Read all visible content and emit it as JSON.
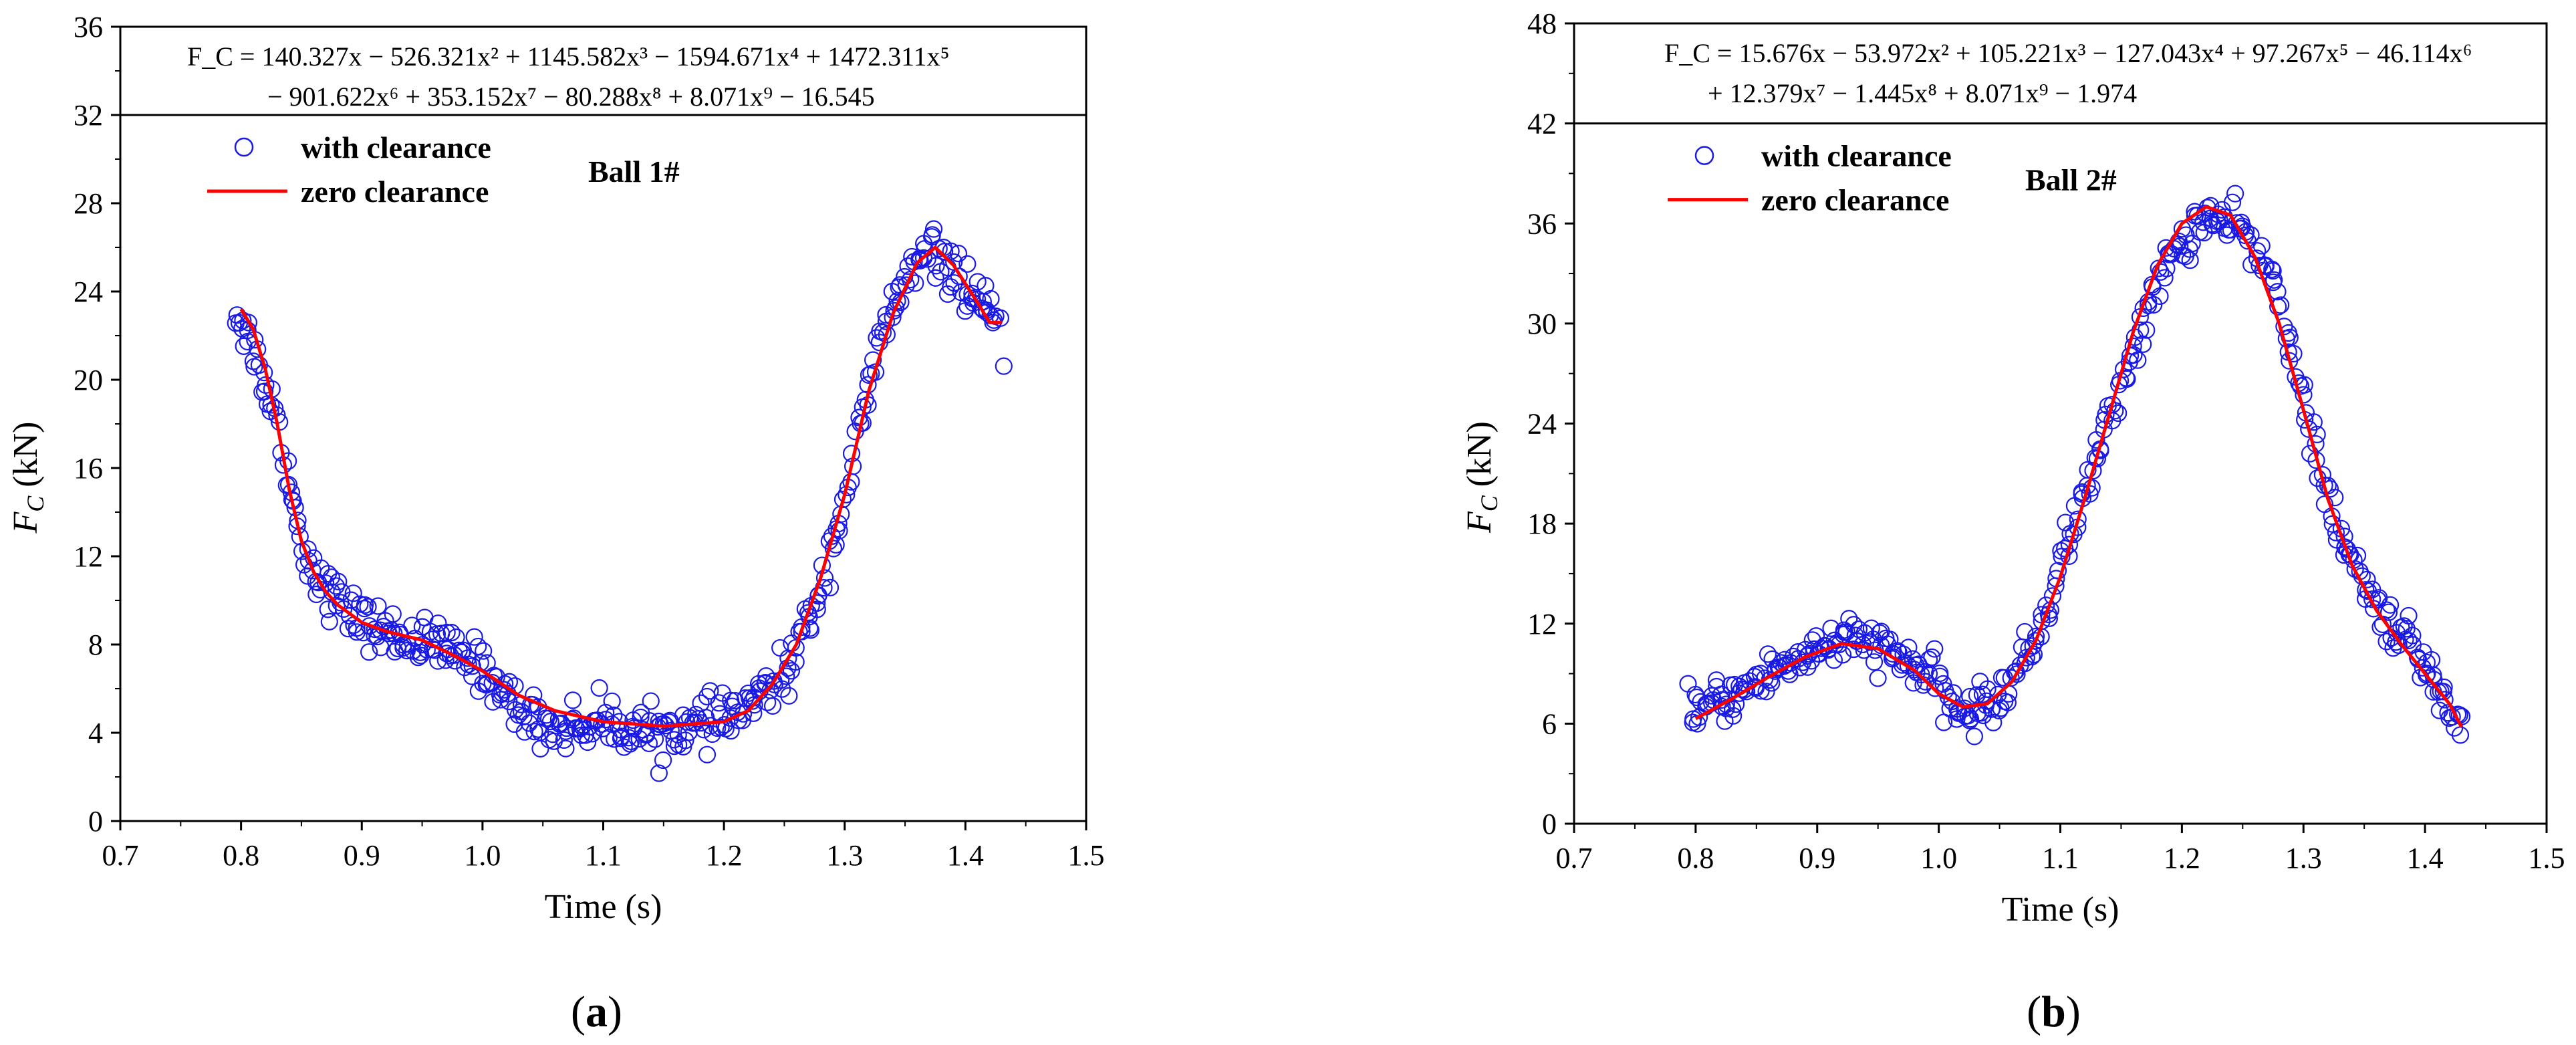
{
  "chart_data": [
    {
      "id": "a",
      "type": "scatter",
      "panel_label": "(a)",
      "panel_letter": "a",
      "xlabel": "Time (s)",
      "ylabel_base": "F",
      "ylabel_sub": "C",
      "ylabel_unit": " (kN)",
      "xlim": [
        0.7,
        1.5
      ],
      "ylim": [
        0,
        36
      ],
      "xticks": [
        "0.7",
        "0.8",
        "0.9",
        "1.0",
        "1.1",
        "1.2",
        "1.3",
        "1.4",
        "1.5"
      ],
      "yticks": [
        "0",
        "4",
        "8",
        "12",
        "16",
        "20",
        "24",
        "28",
        "32",
        "36"
      ],
      "equation_box_bottom": 32,
      "equation_line1": "F_C = 140.327x − 526.321x² + 1145.582x³ − 1594.671x⁴ + 1472.311x⁵",
      "equation_line2": "− 901.622x⁶ + 353.152x⁷ − 80.288x⁸ + 8.071x⁹ − 16.545",
      "annotation": "Ball 1#",
      "legend": [
        "with clearance",
        "zero clearance"
      ],
      "series": [
        {
          "name": "with clearance",
          "marker": "o",
          "color": "#1a1ae6",
          "anchors": [
            [
              0.795,
              23.2
            ],
            [
              0.81,
              21.5
            ],
            [
              0.825,
              19.0
            ],
            [
              0.835,
              17.0
            ],
            [
              0.85,
              12.5
            ],
            [
              0.87,
              10.5
            ],
            [
              0.9,
              9.0
            ],
            [
              0.94,
              8.2
            ],
            [
              0.96,
              8.0
            ],
            [
              1.0,
              7.0
            ],
            [
              1.03,
              5.0
            ],
            [
              1.06,
              4.2
            ],
            [
              1.1,
              4.5
            ],
            [
              1.14,
              4.0
            ],
            [
              1.18,
              4.3
            ],
            [
              1.2,
              4.6
            ],
            [
              1.22,
              5.2
            ],
            [
              1.25,
              6.5
            ],
            [
              1.27,
              9.0
            ],
            [
              1.29,
              12.5
            ],
            [
              1.31,
              17.0
            ],
            [
              1.33,
              22.0
            ],
            [
              1.35,
              24.5
            ],
            [
              1.37,
              25.8
            ],
            [
              1.39,
              25.0
            ],
            [
              1.41,
              23.5
            ],
            [
              1.43,
              22.0
            ]
          ],
          "jitter": 0.9,
          "count": 420
        },
        {
          "name": "zero clearance",
          "marker": "line",
          "color": "#ff0000",
          "points": [
            [
              0.8,
              23.2
            ],
            [
              0.81,
              22.3
            ],
            [
              0.82,
              20.5
            ],
            [
              0.83,
              18.0
            ],
            [
              0.84,
              15.0
            ],
            [
              0.85,
              12.7
            ],
            [
              0.86,
              11.3
            ],
            [
              0.87,
              10.4
            ],
            [
              0.88,
              9.8
            ],
            [
              0.9,
              9.0
            ],
            [
              0.92,
              8.6
            ],
            [
              0.95,
              8.2
            ],
            [
              0.98,
              7.4
            ],
            [
              1.0,
              6.8
            ],
            [
              1.03,
              5.7
            ],
            [
              1.06,
              5.0
            ],
            [
              1.1,
              4.5
            ],
            [
              1.15,
              4.3
            ],
            [
              1.2,
              4.5
            ],
            [
              1.22,
              5.0
            ],
            [
              1.24,
              6.2
            ],
            [
              1.26,
              8.0
            ],
            [
              1.28,
              11.0
            ],
            [
              1.3,
              14.8
            ],
            [
              1.32,
              19.5
            ],
            [
              1.34,
              23.0
            ],
            [
              1.36,
              25.3
            ],
            [
              1.375,
              26.0
            ],
            [
              1.39,
              25.2
            ],
            [
              1.41,
              23.5
            ],
            [
              1.42,
              22.6
            ],
            [
              1.43,
              22.6
            ]
          ]
        }
      ]
    },
    {
      "id": "b",
      "type": "scatter",
      "panel_label": "(b)",
      "panel_letter": "b",
      "xlabel": "Time (s)",
      "ylabel_base": "F",
      "ylabel_sub": "C",
      "ylabel_unit": " (kN)",
      "xlim": [
        0.7,
        1.5
      ],
      "ylim": [
        0,
        48
      ],
      "xticks": [
        "0.7",
        "0.8",
        "0.9",
        "1.0",
        "1.1",
        "1.2",
        "1.3",
        "1.4",
        "1.5"
      ],
      "yticks": [
        "0",
        "6",
        "12",
        "18",
        "24",
        "30",
        "36",
        "42",
        "48"
      ],
      "equation_box_bottom": 42,
      "equation_line1": "F_C = 15.676x − 53.972x² + 105.221x³ − 127.043x⁴ + 97.267x⁵ − 46.114x⁶",
      "equation_line2": "+ 12.379x⁷ − 1.445x⁸ + 8.071x⁹ − 1.974",
      "annotation": "Ball 2#",
      "legend": [
        "with clearance",
        "zero clearance"
      ],
      "series": [
        {
          "name": "with clearance",
          "marker": "o",
          "color": "#1a1ae6",
          "anchors": [
            [
              0.795,
              6.8
            ],
            [
              0.82,
              7.2
            ],
            [
              0.85,
              8.5
            ],
            [
              0.88,
              9.8
            ],
            [
              0.91,
              10.8
            ],
            [
              0.94,
              11.0
            ],
            [
              0.96,
              10.2
            ],
            [
              0.99,
              9.0
            ],
            [
              1.02,
              6.5
            ],
            [
              1.05,
              7.5
            ],
            [
              1.08,
              11.0
            ],
            [
              1.1,
              15.5
            ],
            [
              1.13,
              22.0
            ],
            [
              1.16,
              28.5
            ],
            [
              1.19,
              34.0
            ],
            [
              1.22,
              36.5
            ],
            [
              1.25,
              35.5
            ],
            [
              1.28,
              32.0
            ],
            [
              1.3,
              25.0
            ],
            [
              1.33,
              17.0
            ],
            [
              1.36,
              13.0
            ],
            [
              1.39,
              10.5
            ],
            [
              1.42,
              7.0
            ],
            [
              1.43,
              6.0
            ]
          ],
          "jitter": 1.1,
          "count": 420
        },
        {
          "name": "zero clearance",
          "marker": "line",
          "color": "#ff0000",
          "points": [
            [
              0.8,
              6.3
            ],
            [
              0.83,
              7.5
            ],
            [
              0.86,
              8.8
            ],
            [
              0.89,
              10.0
            ],
            [
              0.92,
              10.8
            ],
            [
              0.95,
              10.5
            ],
            [
              0.98,
              9.2
            ],
            [
              1.0,
              7.8
            ],
            [
              1.02,
              7.0
            ],
            [
              1.04,
              7.2
            ],
            [
              1.06,
              8.5
            ],
            [
              1.08,
              11.0
            ],
            [
              1.1,
              14.8
            ],
            [
              1.12,
              19.5
            ],
            [
              1.14,
              24.5
            ],
            [
              1.16,
              29.5
            ],
            [
              1.18,
              33.5
            ],
            [
              1.2,
              36.0
            ],
            [
              1.22,
              37.0
            ],
            [
              1.24,
              36.5
            ],
            [
              1.26,
              34.0
            ],
            [
              1.28,
              30.0
            ],
            [
              1.3,
              24.8
            ],
            [
              1.32,
              19.5
            ],
            [
              1.34,
              15.5
            ],
            [
              1.36,
              12.8
            ],
            [
              1.38,
              10.8
            ],
            [
              1.4,
              9.0
            ],
            [
              1.42,
              7.2
            ],
            [
              1.43,
              5.8
            ]
          ]
        }
      ]
    }
  ]
}
